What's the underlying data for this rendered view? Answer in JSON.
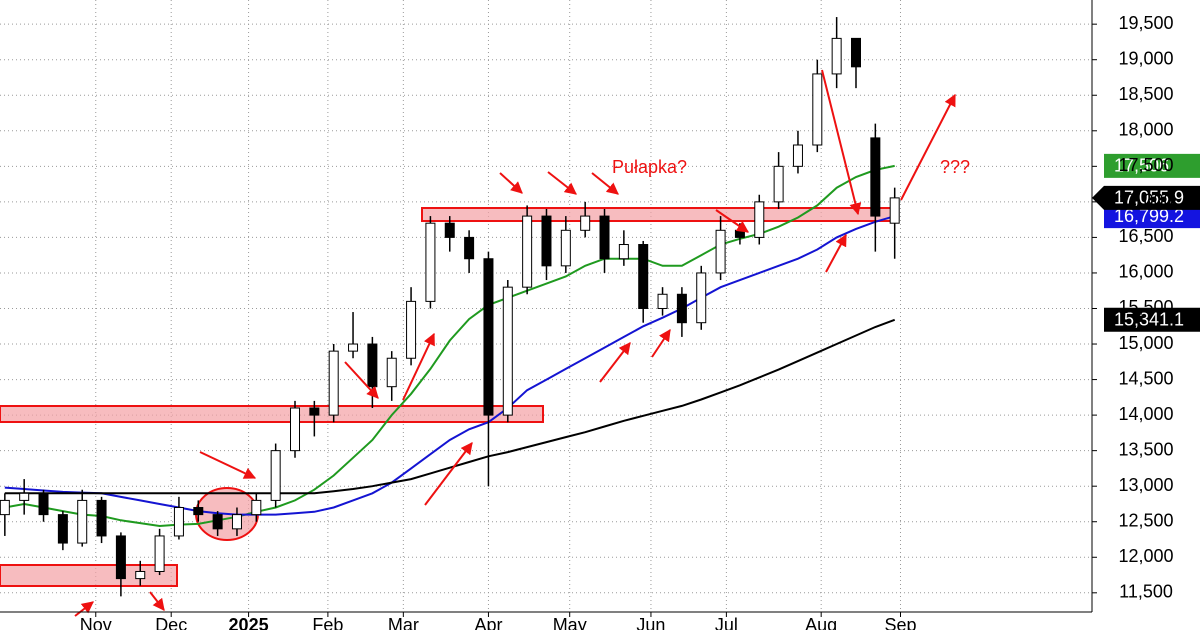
{
  "chart_data": {
    "type": "candlestick",
    "x": [
      0,
      1,
      2,
      3,
      4,
      5,
      6,
      7,
      8,
      9,
      10,
      11,
      12,
      13,
      14,
      15,
      16,
      17,
      18,
      19,
      20,
      21,
      22,
      23,
      24,
      25,
      26,
      27,
      28,
      29,
      30,
      31,
      32,
      33,
      34,
      35,
      36,
      37,
      38,
      39,
      40,
      41,
      42,
      43,
      44,
      45,
      46
    ],
    "open": [
      12600,
      12800,
      12900,
      12600,
      12200,
      12800,
      12300,
      11700,
      11800,
      12300,
      12700,
      12600,
      12400,
      12600,
      12800,
      13500,
      14100,
      14000,
      14900,
      15000,
      14400,
      14800,
      15600,
      16700,
      16500,
      16200,
      14000,
      15800,
      16800,
      16100,
      16600,
      16800,
      16200,
      16400,
      15500,
      15700,
      15300,
      16000,
      16600,
      16500,
      17000,
      17500,
      17800,
      18800,
      19300,
      17900,
      16700
    ],
    "high": [
      12900,
      13100,
      12950,
      12650,
      12950,
      12850,
      12350,
      11950,
      12400,
      12850,
      12800,
      12650,
      12700,
      12900,
      13600,
      14200,
      14200,
      15000,
      15450,
      15100,
      14900,
      15800,
      16800,
      16800,
      16600,
      16300,
      15900,
      16950,
      16900,
      16800,
      17000,
      16900,
      16600,
      16450,
      15800,
      15800,
      16100,
      16800,
      16700,
      17100,
      17700,
      18000,
      19000,
      19600,
      19300,
      18100,
      17200
    ],
    "low": [
      12300,
      12600,
      12500,
      12100,
      12150,
      12200,
      11450,
      11600,
      11750,
      12250,
      12500,
      12300,
      12300,
      12500,
      12700,
      13400,
      13700,
      13900,
      14800,
      14100,
      14200,
      14700,
      15500,
      16300,
      16000,
      13000,
      13900,
      15700,
      15900,
      16000,
      16500,
      16000,
      16100,
      15300,
      15400,
      15100,
      15200,
      15900,
      16400,
      16400,
      16900,
      17400,
      17700,
      18600,
      18600,
      16300,
      16200
    ],
    "close": [
      12800,
      12900,
      12600,
      12200,
      12800,
      12300,
      11700,
      11800,
      12300,
      12700,
      12600,
      12400,
      12600,
      12800,
      13500,
      14100,
      14000,
      14900,
      15000,
      14400,
      14800,
      15600,
      16700,
      16500,
      16200,
      14000,
      15800,
      16800,
      16100,
      16600,
      16800,
      16200,
      16400,
      15500,
      15700,
      15300,
      16000,
      16600,
      16500,
      17000,
      17500,
      17800,
      18800,
      19300,
      18900,
      16800,
      17055.9
    ],
    "close_last_label": "17,055.9",
    "series": [
      {
        "color": "#1f9a1f",
        "tag_color": "#2e9e2e",
        "last_label": "17,506",
        "values": [
          12700,
          12750,
          12700,
          12650,
          12600,
          12580,
          12520,
          12480,
          12440,
          12460,
          12470,
          12520,
          12570,
          12640,
          12700,
          12800,
          12950,
          13150,
          13400,
          13650,
          14000,
          14300,
          14650,
          15050,
          15350,
          15550,
          15650,
          15750,
          15850,
          15950,
          16100,
          16200,
          16200,
          16200,
          16100,
          16100,
          16250,
          16400,
          16480,
          16550,
          16650,
          16780,
          16950,
          17200,
          17350,
          17450,
          17506
        ]
      },
      {
        "color": "#1414d2",
        "tag_color": "#1414e0",
        "last_label": "16,799.2",
        "values": [
          12980,
          12960,
          12940,
          12920,
          12910,
          12900,
          12850,
          12800,
          12750,
          12700,
          12650,
          12620,
          12600,
          12600,
          12600,
          12620,
          12640,
          12700,
          12800,
          12900,
          13050,
          13250,
          13450,
          13650,
          13800,
          13900,
          14100,
          14350,
          14500,
          14650,
          14800,
          14950,
          15100,
          15250,
          15370,
          15500,
          15650,
          15800,
          15900,
          16000,
          16100,
          16200,
          16330,
          16500,
          16620,
          16720,
          16799.2
        ]
      },
      {
        "color": "#000000",
        "tag_color": "#000000",
        "last_label": "15,341.1",
        "values": [
          12900,
          12900,
          12900,
          12900,
          12900,
          12900,
          12900,
          12900,
          12900,
          12900,
          12900,
          12900,
          12900,
          12900,
          12900,
          12900,
          12900,
          12930,
          12960,
          13000,
          13050,
          13100,
          13180,
          13260,
          13340,
          13420,
          13480,
          13550,
          13620,
          13690,
          13760,
          13840,
          13920,
          13990,
          14060,
          14130,
          14220,
          14320,
          14420,
          14530,
          14640,
          14760,
          14880,
          15000,
          15120,
          15240,
          15341.1
        ]
      }
    ],
    "xlim": [
      -0.25,
      56.2
    ],
    "xticks": [
      {
        "value": 4.7,
        "label": "Nov"
      },
      {
        "value": 8.6,
        "label": "Dec"
      },
      {
        "value": 12.6,
        "label": "2025"
      },
      {
        "value": 16.7,
        "label": "Feb"
      },
      {
        "value": 20.6,
        "label": "Mar"
      },
      {
        "value": 25.0,
        "label": "Apr"
      },
      {
        "value": 29.2,
        "label": "May"
      },
      {
        "value": 33.4,
        "label": "Jun"
      },
      {
        "value": 37.3,
        "label": "Jul"
      },
      {
        "value": 42.2,
        "label": "Aug"
      },
      {
        "value": 46.3,
        "label": "Sep"
      }
    ],
    "ylim": [
      11230,
      19840
    ],
    "yticks": [
      {
        "value": 11500,
        "label": "11,500"
      },
      {
        "value": 12000,
        "label": "12,000"
      },
      {
        "value": 12500,
        "label": "12,500"
      },
      {
        "value": 13000,
        "label": "13,000"
      },
      {
        "value": 13500,
        "label": "13,500"
      },
      {
        "value": 14000,
        "label": "14,000"
      },
      {
        "value": 14500,
        "label": "14,500"
      },
      {
        "value": 15000,
        "label": "15,000"
      },
      {
        "value": 15500,
        "label": "15,500"
      },
      {
        "value": 16000,
        "label": "16,000"
      },
      {
        "value": 16500,
        "label": "16,500"
      },
      {
        "value": 17000,
        "label": "17,000"
      },
      {
        "value": 17500,
        "label": "17,500"
      },
      {
        "value": 18000,
        "label": "18,000"
      },
      {
        "value": 18500,
        "label": "18,500"
      },
      {
        "value": 19000,
        "label": "19,000"
      },
      {
        "value": 19500,
        "label": "19,500"
      }
    ],
    "grid": true,
    "annotations": [
      "Pułapka?",
      "???"
    ]
  }
}
